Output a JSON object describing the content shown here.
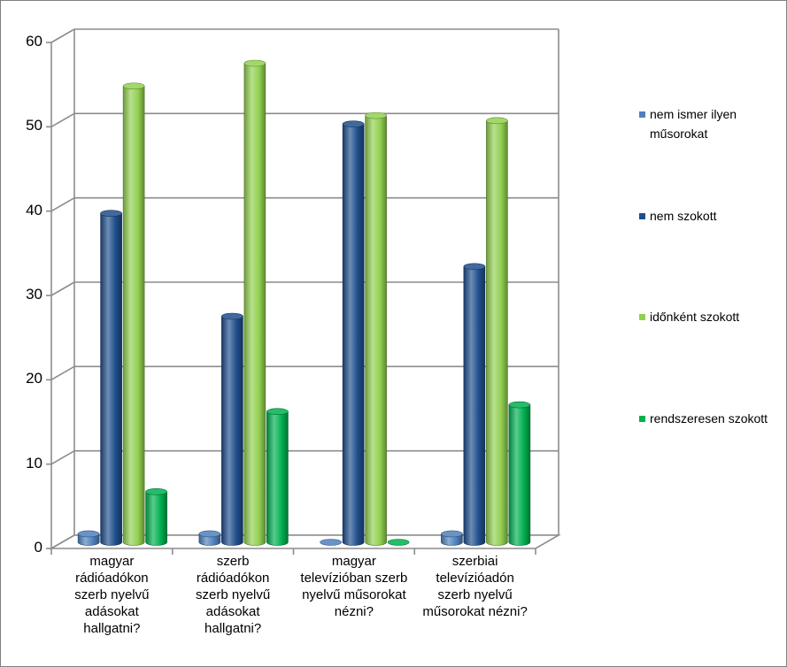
{
  "chart_data": {
    "type": "bar",
    "title": "",
    "xlabel": "",
    "ylabel": "",
    "ylim": [
      0,
      60
    ],
    "yticks": [
      0,
      10,
      20,
      30,
      40,
      50,
      60
    ],
    "ytick_labels": [
      "0",
      "10",
      "20",
      "30",
      "40",
      "50",
      "60"
    ],
    "grid": true,
    "legend_position": "right",
    "categories": [
      "magyar rádióadókon szerb nyelvű adásokat hallgatni?",
      "szerb rádióadókon szerb nyelvű adásokat hallgatni?",
      "magyar televízióban szerb nyelvű műsorokat nézni?",
      "szerbiai televízióadón szerb nyelvű műsorokat nézni?"
    ],
    "category_lines": [
      [
        "magyar",
        "rádióadókon",
        "szerb nyelvű",
        "adásokat",
        "hallgatni?"
      ],
      [
        "szerb",
        "rádióadókon",
        "szerb nyelvű",
        "adásokat",
        "hallgatni?"
      ],
      [
        "magyar",
        "televízióban szerb",
        "nyelvű műsorokat",
        "nézni?"
      ],
      [
        "szerbiai",
        "televízióadón",
        "szerb nyelvű",
        "műsorokat nézni?"
      ]
    ],
    "series": [
      {
        "name": "nem ismer ilyen műsorokat",
        "name_lines": [
          "nem ismer ilyen",
          "műsorokat"
        ],
        "color": "#4F81BD",
        "values": [
          1.0,
          1.0,
          0.0,
          1.0
        ]
      },
      {
        "name": "nem szokott",
        "name_lines": [
          "nem szokott"
        ],
        "color": "#1F4E8C",
        "values": [
          39.0,
          26.8,
          49.6,
          32.7
        ]
      },
      {
        "name": "időnként szokott",
        "name_lines": [
          "időnként szokott"
        ],
        "color": "#92D050",
        "values": [
          54.1,
          56.8,
          50.6,
          50.0
        ]
      },
      {
        "name": "rendszeresen szokott",
        "name_lines": [
          "rendszeresen szokott"
        ],
        "color": "#00B050",
        "values": [
          6.0,
          15.5,
          0.0,
          16.3
        ]
      }
    ]
  }
}
